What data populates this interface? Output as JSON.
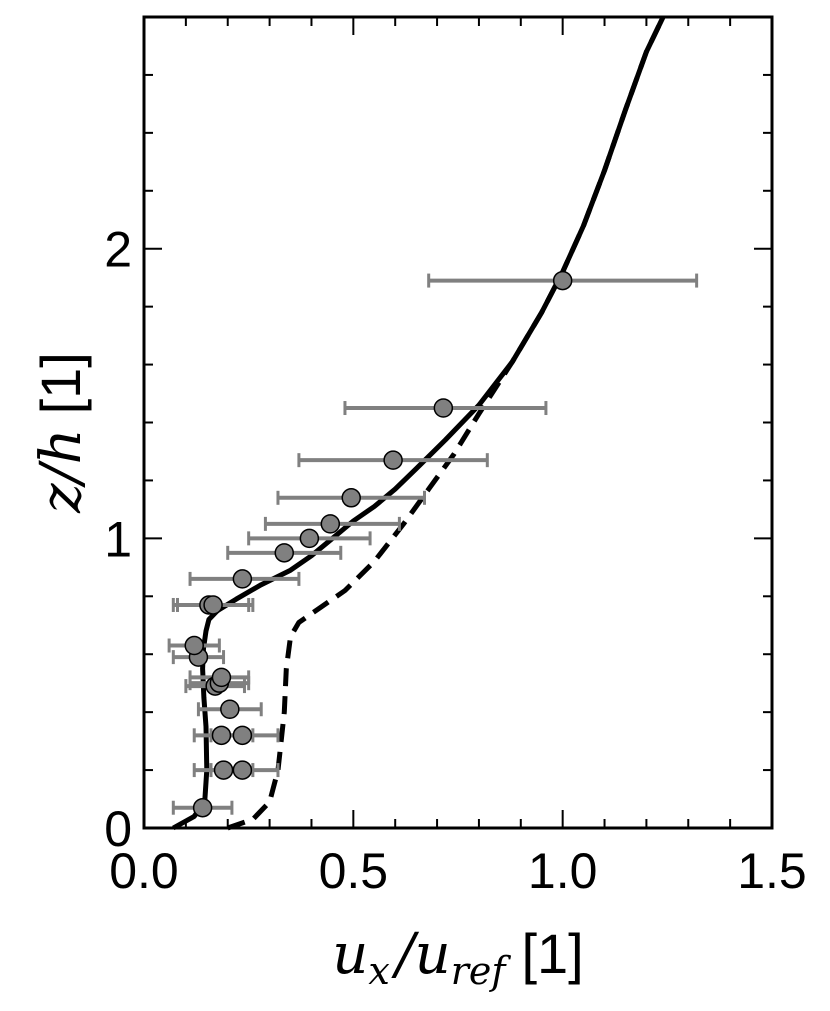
{
  "chart_data": {
    "type": "line",
    "xlabel": "u_x / u_ref [1]",
    "xlabel_parts": {
      "var": "u",
      "sub": "x",
      "slash": "/",
      "var2": "u",
      "sub2": "ref",
      "unit": "[1]"
    },
    "ylabel": "z/h [1]",
    "ylabel_parts": {
      "var": "z/h",
      "unit": "[1]"
    },
    "xlim": [
      0.0,
      1.5
    ],
    "ylim": [
      0.0,
      2.8
    ],
    "x_ticks": [
      0.0,
      0.5,
      1.0,
      1.5
    ],
    "x_tick_labels": [
      "0.0",
      "0.5",
      "1.0",
      "1.5"
    ],
    "y_ticks": [
      0,
      1,
      2
    ],
    "y_tick_labels": [
      "0",
      "1",
      "2"
    ],
    "grid": false,
    "legend": "none",
    "colors": {
      "solid": "#000000",
      "dashed": "#000000",
      "markers": "#808080",
      "errorbars": "#808080"
    },
    "series": [
      {
        "style": "solid",
        "points": [
          [
            0.07,
            0.0
          ],
          [
            0.12,
            0.04
          ],
          [
            0.145,
            0.09
          ],
          [
            0.15,
            0.2
          ],
          [
            0.148,
            0.35
          ],
          [
            0.143,
            0.45
          ],
          [
            0.14,
            0.55
          ],
          [
            0.142,
            0.62
          ],
          [
            0.148,
            0.68
          ],
          [
            0.155,
            0.72
          ],
          [
            0.175,
            0.75
          ],
          [
            0.22,
            0.79
          ],
          [
            0.28,
            0.84
          ],
          [
            0.35,
            0.89
          ],
          [
            0.4,
            0.94
          ],
          [
            0.45,
            1.0
          ],
          [
            0.5,
            1.06
          ],
          [
            0.55,
            1.11
          ],
          [
            0.6,
            1.17
          ],
          [
            0.65,
            1.24
          ],
          [
            0.72,
            1.34
          ],
          [
            0.8,
            1.46
          ],
          [
            0.88,
            1.61
          ],
          [
            0.95,
            1.78
          ],
          [
            1.0,
            1.92
          ],
          [
            1.05,
            2.08
          ],
          [
            1.1,
            2.27
          ],
          [
            1.15,
            2.48
          ],
          [
            1.2,
            2.68
          ],
          [
            1.24,
            2.8
          ]
        ]
      },
      {
        "style": "dashed",
        "points": [
          [
            0.2,
            0.0
          ],
          [
            0.26,
            0.03
          ],
          [
            0.3,
            0.09
          ],
          [
            0.32,
            0.2
          ],
          [
            0.335,
            0.4
          ],
          [
            0.34,
            0.55
          ],
          [
            0.35,
            0.66
          ],
          [
            0.37,
            0.71
          ],
          [
            0.42,
            0.76
          ],
          [
            0.48,
            0.82
          ],
          [
            0.55,
            0.92
          ],
          [
            0.62,
            1.05
          ],
          [
            0.68,
            1.17
          ],
          [
            0.74,
            1.29
          ],
          [
            0.8,
            1.43
          ],
          [
            0.88,
            1.61
          ],
          [
            0.95,
            1.78
          ],
          [
            1.0,
            1.92
          ],
          [
            1.05,
            2.08
          ],
          [
            1.1,
            2.27
          ],
          [
            1.15,
            2.48
          ],
          [
            1.2,
            2.68
          ],
          [
            1.24,
            2.8
          ]
        ]
      },
      {
        "style": "markers-with-xerror",
        "points": [
          {
            "x": 0.14,
            "y": 0.07,
            "xerr": [
              0.07,
              0.21
            ]
          },
          {
            "x": 0.19,
            "y": 0.2,
            "xerr": [
              0.12,
              0.26
            ]
          },
          {
            "x": 0.235,
            "y": 0.2,
            "xerr": [
              0.16,
              0.32
            ]
          },
          {
            "x": 0.185,
            "y": 0.32,
            "xerr": [
              0.12,
              0.26
            ]
          },
          {
            "x": 0.235,
            "y": 0.32,
            "xerr": [
              0.16,
              0.32
            ]
          },
          {
            "x": 0.205,
            "y": 0.41,
            "xerr": [
              0.13,
              0.28
            ]
          },
          {
            "x": 0.17,
            "y": 0.49,
            "xerr": [
              0.1,
              0.24
            ]
          },
          {
            "x": 0.18,
            "y": 0.5,
            "xerr": [
              0.11,
              0.25
            ]
          },
          {
            "x": 0.185,
            "y": 0.52,
            "xerr": [
              0.11,
              0.25
            ]
          },
          {
            "x": 0.13,
            "y": 0.59,
            "xerr": [
              0.07,
              0.19
            ]
          },
          {
            "x": 0.12,
            "y": 0.63,
            "xerr": [
              0.06,
              0.18
            ]
          },
          {
            "x": 0.155,
            "y": 0.77,
            "xerr": [
              0.07,
              0.25
            ]
          },
          {
            "x": 0.165,
            "y": 0.77,
            "xerr": [
              0.08,
              0.26
            ]
          },
          {
            "x": 0.235,
            "y": 0.86,
            "xerr": [
              0.11,
              0.37
            ]
          },
          {
            "x": 0.335,
            "y": 0.95,
            "xerr": [
              0.2,
              0.47
            ]
          },
          {
            "x": 0.395,
            "y": 1.0,
            "xerr": [
              0.25,
              0.54
            ]
          },
          {
            "x": 0.445,
            "y": 1.05,
            "xerr": [
              0.29,
              0.61
            ]
          },
          {
            "x": 0.495,
            "y": 1.14,
            "xerr": [
              0.32,
              0.67
            ]
          },
          {
            "x": 0.595,
            "y": 1.27,
            "xerr": [
              0.37,
              0.82
            ]
          },
          {
            "x": 0.715,
            "y": 1.45,
            "xerr": [
              0.48,
              0.96
            ]
          },
          {
            "x": 1.0,
            "y": 1.89,
            "xerr": [
              0.68,
              1.32
            ]
          }
        ]
      }
    ]
  }
}
